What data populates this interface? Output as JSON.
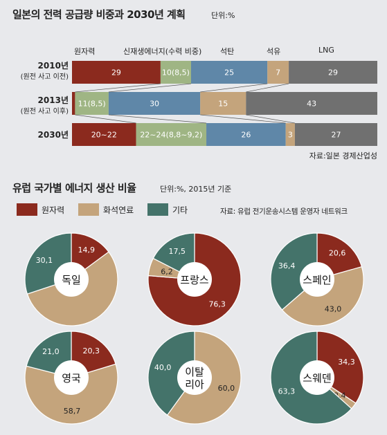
{
  "section1": {
    "title": "일본의 전력 공급량 비중과 2030년 계획",
    "unit": "단위:%",
    "source": "자료:일본 경제산업성"
  },
  "section2": {
    "title": "유럽 국가별 에너지 생산 비율",
    "unit": "단위:%, 2015년 기준",
    "source": "자료: 유럽 전기운송시스템 운영자 네트워크"
  },
  "colors": {
    "nuclear": "#8b2a1e",
    "renewable": "#9fb584",
    "lng_oil_coal_bar": "#5f87a8",
    "oil": "#c4a47c",
    "lng": "#707070",
    "fossil": "#c4a47c",
    "other": "#44736a"
  },
  "chart_data": [
    {
      "type": "bar",
      "stacked": true,
      "orientation": "horizontal",
      "categories": [
        "원자력",
        "신재생에너지(수력 비중)",
        "석탄",
        "석유",
        "LNG"
      ],
      "rows": [
        {
          "year": "2010년",
          "note": "(원전 사고 이전)",
          "values": [
            29,
            10,
            25,
            7,
            29
          ],
          "labels": [
            "29",
            "10(8,5)",
            "25",
            "7",
            "29"
          ]
        },
        {
          "year": "2013년",
          "note": "(원전 사고 이후)",
          "values": [
            1,
            11,
            30,
            15,
            43
          ],
          "labels": [
            "1",
            "11(8,5)",
            "30",
            "15",
            "43"
          ]
        },
        {
          "year": "2030년",
          "note": "",
          "values": [
            21,
            23,
            26,
            3,
            27
          ],
          "labels": [
            "20~22",
            "22~24(8,8~9,2)",
            "26",
            "3",
            "27"
          ]
        }
      ]
    },
    {
      "type": "pie",
      "legend": [
        "원자력",
        "화석연료",
        "기타"
      ],
      "charts": [
        {
          "country": "독일",
          "values": [
            14.9,
            55.0,
            30.1
          ],
          "labels": [
            "14,9",
            "",
            "30,1"
          ]
        },
        {
          "country": "프랑스",
          "values": [
            76.3,
            6.2,
            17.5
          ],
          "labels": [
            "76,3",
            "6,2",
            "17,5"
          ]
        },
        {
          "country": "스페인",
          "values": [
            20.6,
            43.0,
            36.4
          ],
          "labels": [
            "20,6",
            "43,0",
            "36,4"
          ]
        },
        {
          "country": "영국",
          "values": [
            20.3,
            58.7,
            21.0
          ],
          "labels": [
            "20,3",
            "58,7",
            "21,0"
          ]
        },
        {
          "country": "이탈리아",
          "values": [
            0,
            60.0,
            40.0
          ],
          "labels": [
            "",
            "60,0",
            "40,0"
          ]
        },
        {
          "country": "스웨덴",
          "values": [
            34.3,
            2.4,
            63.3
          ],
          "labels": [
            "34,3",
            "2,4",
            "63,3"
          ]
        }
      ]
    }
  ]
}
